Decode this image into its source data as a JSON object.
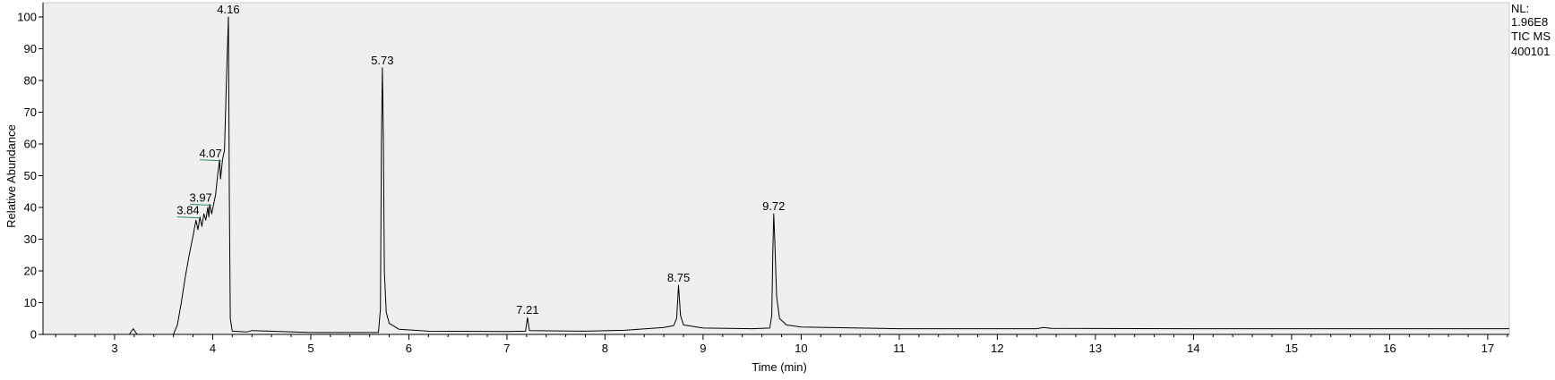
{
  "chart_data": {
    "type": "line",
    "title": "",
    "xlabel": "Time (min)",
    "ylabel": "Relative Abundance",
    "xlim": [
      2.27,
      17.22
    ],
    "ylim": [
      0,
      100
    ],
    "x_ticks": [
      3,
      4,
      5,
      6,
      7,
      8,
      9,
      10,
      11,
      12,
      13,
      14,
      15,
      16,
      17
    ],
    "y_ticks": [
      0,
      10,
      20,
      30,
      40,
      50,
      60,
      70,
      80,
      90,
      100
    ],
    "grid": false,
    "colors": {
      "plot_bg": "#efefef",
      "trace": "#000000",
      "marker_line": "#2e8b57"
    },
    "info": [
      "NL:",
      "1.96E8",
      "TIC  MS",
      "400101"
    ],
    "peaks": [
      {
        "label": "3.84",
        "rt": 3.84,
        "y": 37.0,
        "marked": true
      },
      {
        "label": "3.97",
        "rt": 3.97,
        "y": 41.0,
        "marked": true
      },
      {
        "label": "4.07",
        "rt": 4.07,
        "y": 55.0,
        "marked": true
      },
      {
        "label": "4.16",
        "rt": 4.16,
        "y": 100.0,
        "marked": false
      },
      {
        "label": "5.73",
        "rt": 5.73,
        "y": 84.0,
        "marked": false
      },
      {
        "label": "7.21",
        "rt": 7.21,
        "y": 5.3,
        "marked": false
      },
      {
        "label": "8.75",
        "rt": 8.75,
        "y": 15.5,
        "marked": false
      },
      {
        "label": "9.72",
        "rt": 9.72,
        "y": 38.0,
        "marked": false
      }
    ],
    "series": [
      {
        "values": [
          [
            2.27,
            0.0
          ],
          [
            3.15,
            0.0
          ],
          [
            3.19,
            1.8
          ],
          [
            3.23,
            0.0
          ],
          [
            3.6,
            0.0
          ],
          [
            3.64,
            3.0
          ],
          [
            3.68,
            10.0
          ],
          [
            3.72,
            18.0
          ],
          [
            3.76,
            25.0
          ],
          [
            3.8,
            31.0
          ],
          [
            3.83,
            36.0
          ],
          [
            3.85,
            33.0
          ],
          [
            3.87,
            37.0
          ],
          [
            3.89,
            34.0
          ],
          [
            3.91,
            38.0
          ],
          [
            3.93,
            36.0
          ],
          [
            3.95,
            40.0
          ],
          [
            3.96,
            37.0
          ],
          [
            3.97,
            41.0
          ],
          [
            3.99,
            38.0
          ],
          [
            4.01,
            41.0
          ],
          [
            4.03,
            44.0
          ],
          [
            4.05,
            50.0
          ],
          [
            4.07,
            55.0
          ],
          [
            4.08,
            49.0
          ],
          [
            4.1,
            55.0
          ],
          [
            4.12,
            58.0
          ],
          [
            4.14,
            80.0
          ],
          [
            4.16,
            100.0
          ],
          [
            4.17,
            45.0
          ],
          [
            4.18,
            5.0
          ],
          [
            4.2,
            1.0
          ],
          [
            4.35,
            0.8
          ],
          [
            4.4,
            1.2
          ],
          [
            5.0,
            0.6
          ],
          [
            5.69,
            0.6
          ],
          [
            5.71,
            8.0
          ],
          [
            5.72,
            60.0
          ],
          [
            5.73,
            84.0
          ],
          [
            5.74,
            62.0
          ],
          [
            5.75,
            20.0
          ],
          [
            5.77,
            7.0
          ],
          [
            5.8,
            3.5
          ],
          [
            5.9,
            1.6
          ],
          [
            6.2,
            1.0
          ],
          [
            7.0,
            0.9
          ],
          [
            7.19,
            1.0
          ],
          [
            7.21,
            5.3
          ],
          [
            7.23,
            1.2
          ],
          [
            7.8,
            1.0
          ],
          [
            8.2,
            1.3
          ],
          [
            8.6,
            2.2
          ],
          [
            8.7,
            2.8
          ],
          [
            8.73,
            5.0
          ],
          [
            8.75,
            15.5
          ],
          [
            8.77,
            6.0
          ],
          [
            8.8,
            3.0
          ],
          [
            9.0,
            2.0
          ],
          [
            9.5,
            1.8
          ],
          [
            9.68,
            2.0
          ],
          [
            9.7,
            6.0
          ],
          [
            9.71,
            25.0
          ],
          [
            9.72,
            38.0
          ],
          [
            9.73,
            30.0
          ],
          [
            9.75,
            12.0
          ],
          [
            9.78,
            5.0
          ],
          [
            9.85,
            3.0
          ],
          [
            10.0,
            2.3
          ],
          [
            11.0,
            1.8
          ],
          [
            12.4,
            1.8
          ],
          [
            12.47,
            2.2
          ],
          [
            12.55,
            1.9
          ],
          [
            14.0,
            1.8
          ],
          [
            16.0,
            1.8
          ],
          [
            17.22,
            1.8
          ]
        ]
      }
    ]
  }
}
